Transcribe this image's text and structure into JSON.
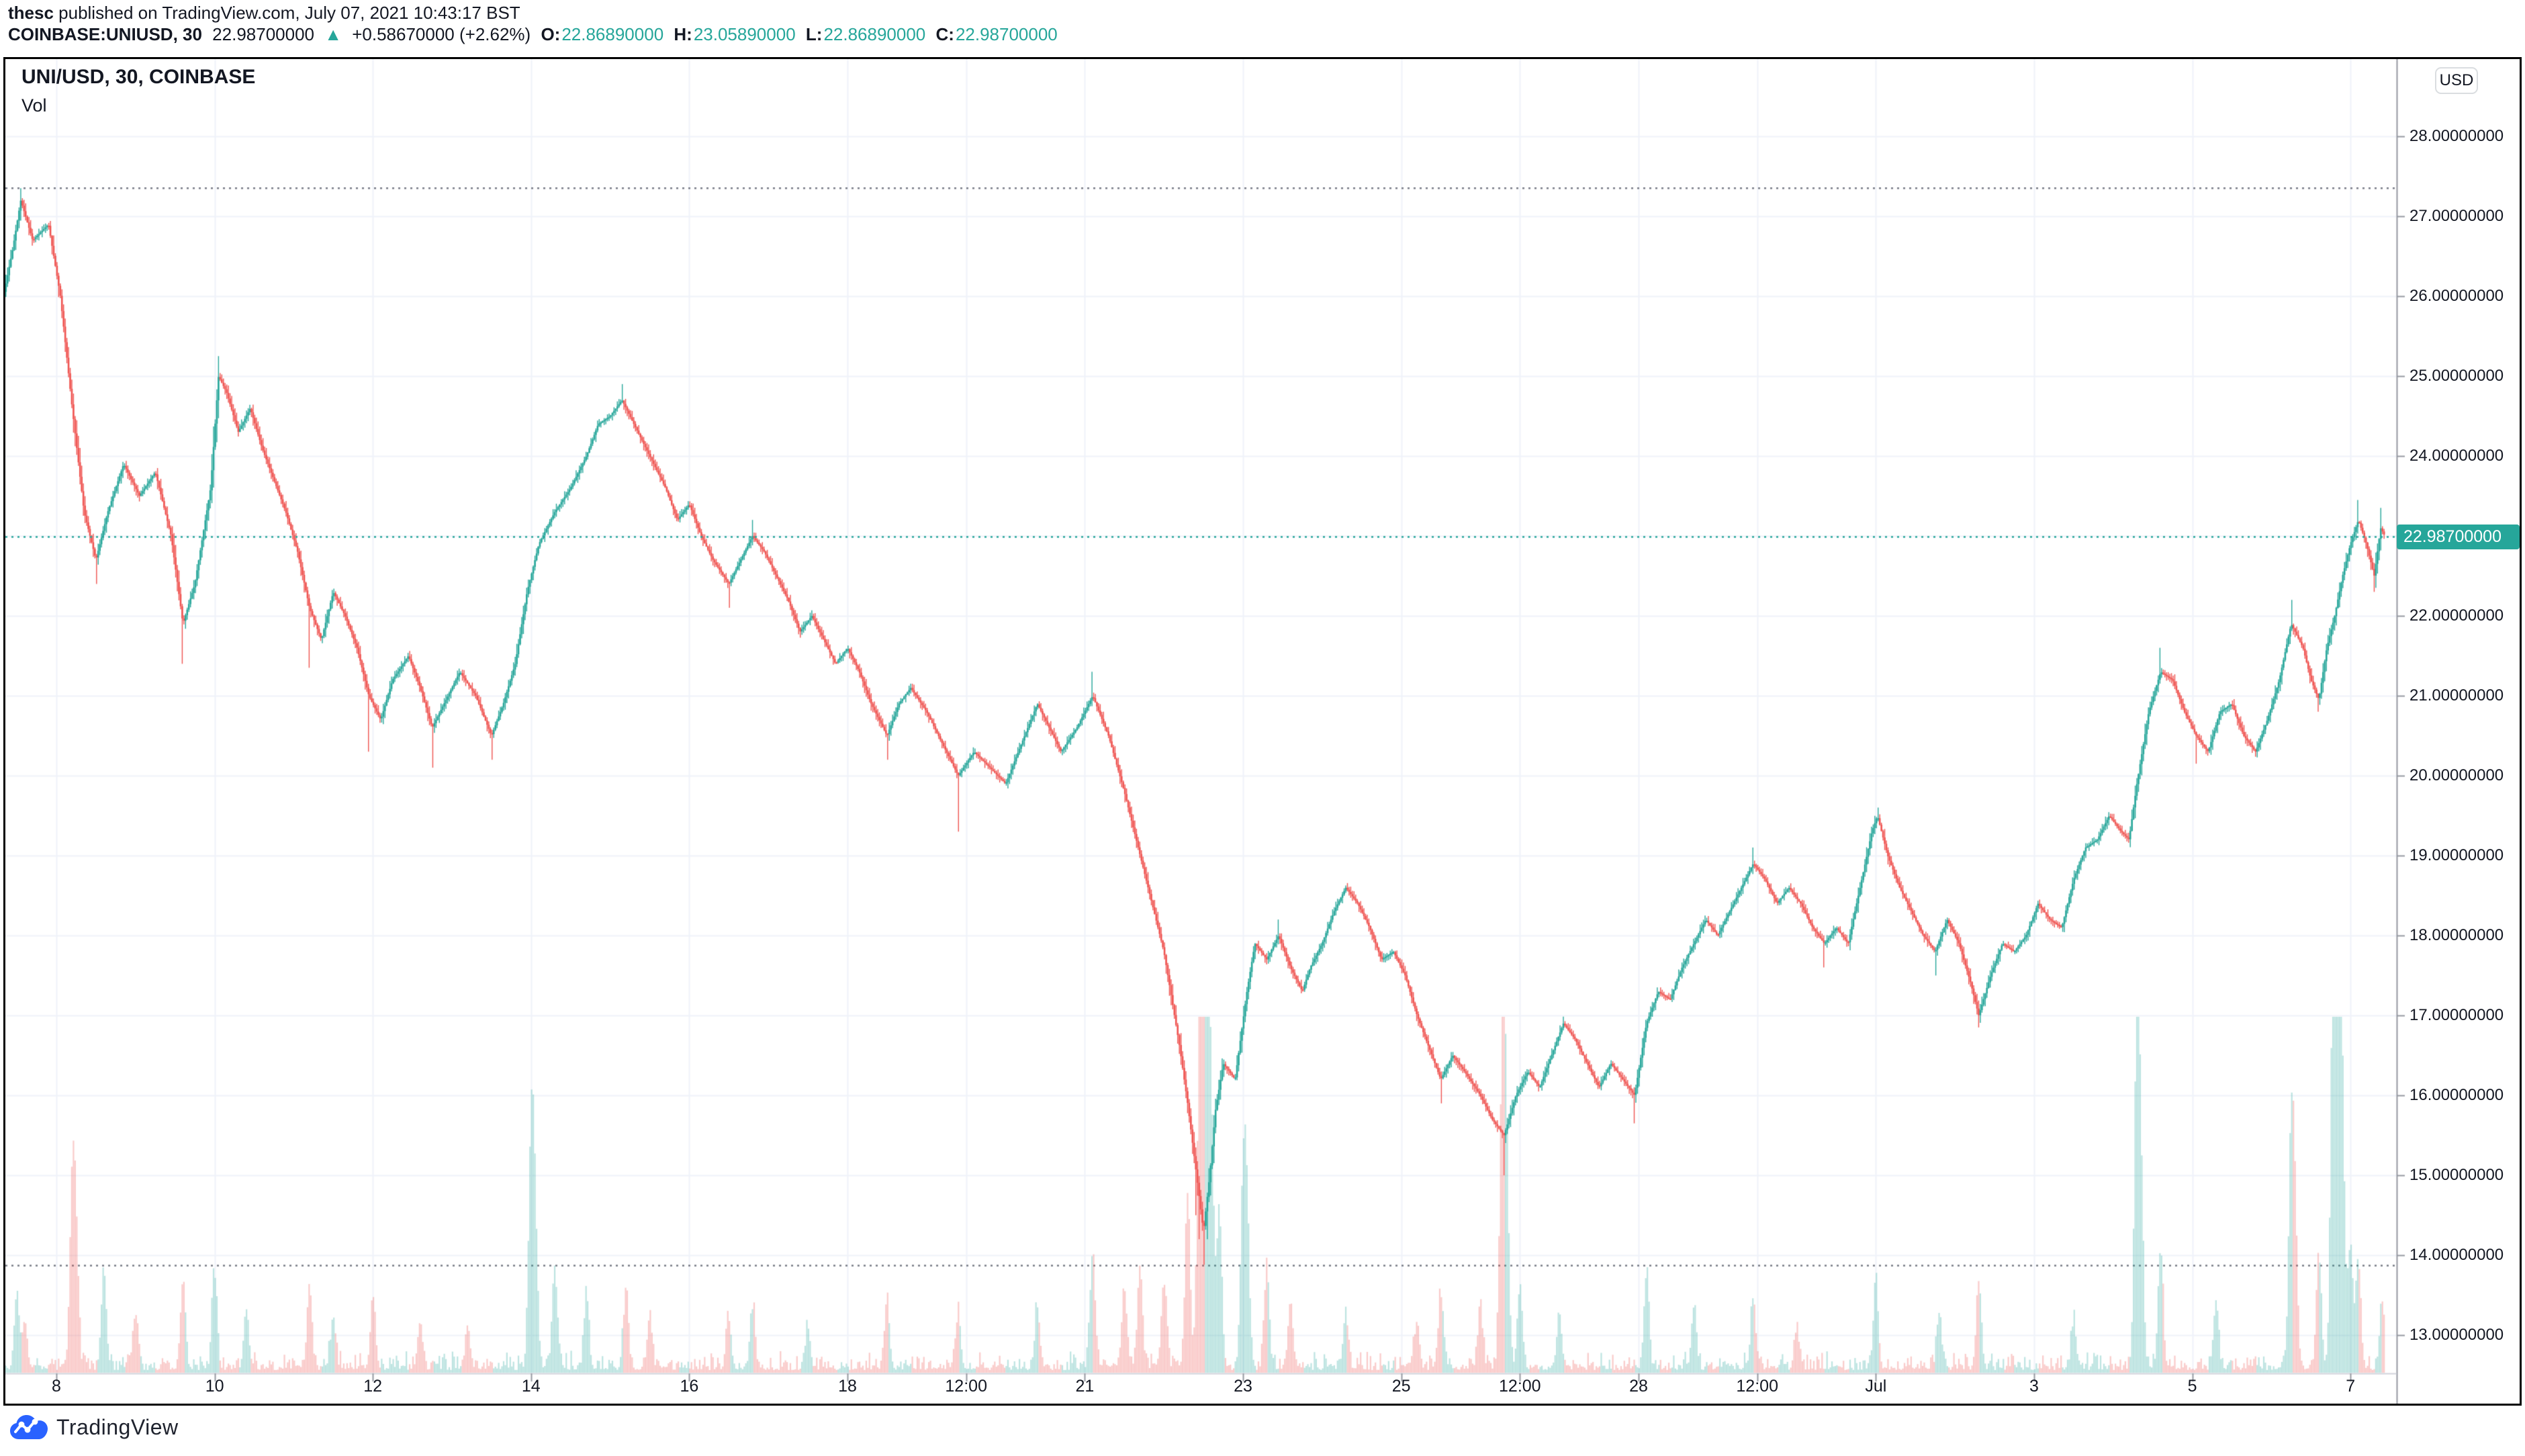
{
  "header": {
    "byline": {
      "user": "thesc",
      "rest": " published on TradingView.com, July 07, 2021 10:43:17 BST"
    },
    "quote": {
      "symbol": "COINBASE:UNIUSD, 30",
      "last": "22.98700000",
      "arrow": "▲",
      "change": "+0.58670000 (+2.62%)",
      "o_label": "O:",
      "o": "22.86890000",
      "h_label": "H:",
      "h": "23.05890000",
      "l_label": "L:",
      "l": "22.86890000",
      "c_label": "C:",
      "c": "22.98700000"
    }
  },
  "legend": {
    "title": "UNI/USD, 30, COINBASE",
    "indicator": "Vol"
  },
  "price_axis": {
    "currency": "USD",
    "current": "22.98700000",
    "ticks": [
      {
        "price": 28,
        "label": "28.00000000"
      },
      {
        "price": 27,
        "label": "27.00000000"
      },
      {
        "price": 26,
        "label": "26.00000000"
      },
      {
        "price": 25,
        "label": "25.00000000"
      },
      {
        "price": 24,
        "label": "24.00000000"
      },
      {
        "price": 23,
        "label": "23.00000000"
      },
      {
        "price": 22,
        "label": "22.00000000"
      },
      {
        "price": 21,
        "label": "21.00000000"
      },
      {
        "price": 20,
        "label": "20.00000000"
      },
      {
        "price": 19,
        "label": "19.00000000"
      },
      {
        "price": 18,
        "label": "18.00000000"
      },
      {
        "price": 17,
        "label": "17.00000000"
      },
      {
        "price": 16,
        "label": "16.00000000"
      },
      {
        "price": 15,
        "label": "15.00000000"
      },
      {
        "price": 14,
        "label": "14.00000000"
      },
      {
        "price": 13,
        "label": "13.00000000"
      }
    ]
  },
  "time_axis": {
    "ticks": [
      {
        "day": 8,
        "label": "8"
      },
      {
        "day": 10,
        "label": "10"
      },
      {
        "day": 12,
        "label": "12"
      },
      {
        "day": 14,
        "label": "14"
      },
      {
        "day": 16,
        "label": "16"
      },
      {
        "day": 18,
        "label": "18"
      },
      {
        "day": 19.5,
        "label": "12:00"
      },
      {
        "day": 21,
        "label": "21"
      },
      {
        "day": 23,
        "label": "23"
      },
      {
        "day": 25,
        "label": "25"
      },
      {
        "day": 26.5,
        "label": "12:00"
      },
      {
        "day": 28,
        "label": "28"
      },
      {
        "day": 29.5,
        "label": "12:00"
      },
      {
        "day": 31,
        "label": "Jul"
      },
      {
        "day": 33,
        "label": "3"
      },
      {
        "day": 35,
        "label": "5"
      },
      {
        "day": 37,
        "label": "7"
      }
    ]
  },
  "footer": {
    "brand": "TradingView"
  },
  "colors": {
    "up": "#26a69a",
    "down": "#ef5350",
    "vol_up": "rgba(38,166,154,0.30)",
    "vol_down": "rgba(239,83,80,0.30)",
    "grid": "#f0f3fa",
    "axis_line": "#9598a1",
    "sep_line": "#d1d4dc",
    "text": "#131722",
    "dotted_gray": "#787b86",
    "accent_teal": "#26a69a",
    "price_label_bg": "#26a69a",
    "brand_blue": "#2962ff"
  },
  "chart_data": {
    "type": "candlestick",
    "symbol": "UNI/USD",
    "exchange": "COINBASE",
    "interval_minutes": 30,
    "title": "UNI/USD, 30, COINBASE",
    "x_unit": "June 2021 day number (31 = Jul 1, 37 = Jul 7)",
    "visible_x_range": [
      7.3,
      37.6
    ],
    "visible_y_range": [
      12.5,
      29.0
    ],
    "y_ticks": [
      13,
      14,
      15,
      16,
      17,
      18,
      19,
      20,
      21,
      22,
      23,
      24,
      25,
      26,
      27,
      28
    ],
    "range_high_line": 27.35,
    "range_low_line": 13.87,
    "current_price": 22.987,
    "current_price_is_up": true,
    "grid": true,
    "legend_position": "top-left",
    "price_path": [
      [
        7.33,
        26.0
      ],
      [
        7.45,
        26.6
      ],
      [
        7.55,
        27.2
      ],
      [
        7.7,
        26.7
      ],
      [
        7.9,
        26.9
      ],
      [
        8.05,
        26.0
      ],
      [
        8.2,
        24.6
      ],
      [
        8.35,
        23.3
      ],
      [
        8.5,
        22.7
      ],
      [
        8.65,
        23.3
      ],
      [
        8.85,
        23.9
      ],
      [
        9.05,
        23.5
      ],
      [
        9.25,
        23.8
      ],
      [
        9.45,
        23.0
      ],
      [
        9.6,
        21.9
      ],
      [
        9.75,
        22.4
      ],
      [
        9.95,
        23.6
      ],
      [
        10.05,
        25.0
      ],
      [
        10.15,
        24.8
      ],
      [
        10.3,
        24.3
      ],
      [
        10.45,
        24.6
      ],
      [
        10.6,
        24.1
      ],
      [
        10.75,
        23.7
      ],
      [
        10.9,
        23.3
      ],
      [
        11.05,
        22.8
      ],
      [
        11.2,
        22.1
      ],
      [
        11.35,
        21.7
      ],
      [
        11.5,
        22.3
      ],
      [
        11.65,
        22.0
      ],
      [
        11.8,
        21.6
      ],
      [
        11.95,
        21.0
      ],
      [
        12.1,
        20.7
      ],
      [
        12.25,
        21.2
      ],
      [
        12.45,
        21.5
      ],
      [
        12.6,
        21.1
      ],
      [
        12.75,
        20.6
      ],
      [
        12.9,
        20.9
      ],
      [
        13.1,
        21.3
      ],
      [
        13.3,
        21.0
      ],
      [
        13.5,
        20.5
      ],
      [
        13.65,
        20.9
      ],
      [
        13.8,
        21.4
      ],
      [
        13.95,
        22.3
      ],
      [
        14.1,
        22.9
      ],
      [
        14.3,
        23.3
      ],
      [
        14.5,
        23.6
      ],
      [
        14.7,
        24.0
      ],
      [
        14.85,
        24.4
      ],
      [
        15.0,
        24.5
      ],
      [
        15.15,
        24.7
      ],
      [
        15.3,
        24.4
      ],
      [
        15.5,
        24.0
      ],
      [
        15.7,
        23.6
      ],
      [
        15.85,
        23.2
      ],
      [
        16.0,
        23.4
      ],
      [
        16.15,
        23.0
      ],
      [
        16.3,
        22.7
      ],
      [
        16.5,
        22.4
      ],
      [
        16.65,
        22.7
      ],
      [
        16.8,
        23.0
      ],
      [
        16.95,
        22.8
      ],
      [
        17.1,
        22.5
      ],
      [
        17.25,
        22.2
      ],
      [
        17.4,
        21.8
      ],
      [
        17.55,
        22.0
      ],
      [
        17.7,
        21.7
      ],
      [
        17.85,
        21.4
      ],
      [
        18.0,
        21.6
      ],
      [
        18.15,
        21.3
      ],
      [
        18.3,
        20.9
      ],
      [
        18.5,
        20.5
      ],
      [
        18.65,
        20.9
      ],
      [
        18.8,
        21.1
      ],
      [
        19.0,
        20.8
      ],
      [
        19.2,
        20.4
      ],
      [
        19.4,
        20.0
      ],
      [
        19.6,
        20.3
      ],
      [
        19.8,
        20.1
      ],
      [
        20.0,
        19.9
      ],
      [
        20.2,
        20.4
      ],
      [
        20.4,
        20.9
      ],
      [
        20.55,
        20.6
      ],
      [
        20.7,
        20.3
      ],
      [
        20.9,
        20.6
      ],
      [
        21.1,
        21.0
      ],
      [
        21.3,
        20.5
      ],
      [
        21.5,
        19.8
      ],
      [
        21.7,
        19.0
      ],
      [
        21.85,
        18.4
      ],
      [
        22.0,
        17.8
      ],
      [
        22.1,
        17.2
      ],
      [
        22.2,
        16.6
      ],
      [
        22.3,
        15.9
      ],
      [
        22.4,
        15.1
      ],
      [
        22.5,
        14.3
      ],
      [
        22.58,
        15.0
      ],
      [
        22.65,
        15.8
      ],
      [
        22.75,
        16.4
      ],
      [
        22.9,
        16.2
      ],
      [
        23.05,
        17.3
      ],
      [
        23.15,
        17.9
      ],
      [
        23.3,
        17.7
      ],
      [
        23.45,
        18.0
      ],
      [
        23.6,
        17.6
      ],
      [
        23.75,
        17.3
      ],
      [
        23.85,
        17.6
      ],
      [
        24.0,
        17.9
      ],
      [
        24.15,
        18.3
      ],
      [
        24.3,
        18.6
      ],
      [
        24.45,
        18.4
      ],
      [
        24.6,
        18.1
      ],
      [
        24.75,
        17.7
      ],
      [
        24.9,
        17.8
      ],
      [
        25.05,
        17.5
      ],
      [
        25.2,
        17.0
      ],
      [
        25.35,
        16.6
      ],
      [
        25.5,
        16.2
      ],
      [
        25.65,
        16.5
      ],
      [
        25.8,
        16.3
      ],
      [
        26.0,
        16.0
      ],
      [
        26.15,
        15.7
      ],
      [
        26.3,
        15.5
      ],
      [
        26.45,
        16.0
      ],
      [
        26.6,
        16.3
      ],
      [
        26.75,
        16.1
      ],
      [
        26.9,
        16.5
      ],
      [
        27.05,
        16.9
      ],
      [
        27.2,
        16.7
      ],
      [
        27.35,
        16.4
      ],
      [
        27.5,
        16.1
      ],
      [
        27.65,
        16.4
      ],
      [
        27.8,
        16.2
      ],
      [
        27.95,
        16.0
      ],
      [
        28.1,
        16.9
      ],
      [
        28.25,
        17.3
      ],
      [
        28.4,
        17.2
      ],
      [
        28.55,
        17.6
      ],
      [
        28.7,
        17.9
      ],
      [
        28.85,
        18.2
      ],
      [
        29.0,
        18.0
      ],
      [
        29.15,
        18.3
      ],
      [
        29.3,
        18.6
      ],
      [
        29.45,
        18.9
      ],
      [
        29.6,
        18.7
      ],
      [
        29.75,
        18.4
      ],
      [
        29.9,
        18.6
      ],
      [
        30.05,
        18.4
      ],
      [
        30.2,
        18.1
      ],
      [
        30.35,
        17.9
      ],
      [
        30.5,
        18.1
      ],
      [
        30.65,
        17.9
      ],
      [
        30.8,
        18.6
      ],
      [
        30.95,
        19.3
      ],
      [
        31.02,
        19.5
      ],
      [
        31.15,
        19.0
      ],
      [
        31.3,
        18.6
      ],
      [
        31.45,
        18.3
      ],
      [
        31.6,
        18.0
      ],
      [
        31.75,
        17.8
      ],
      [
        31.9,
        18.2
      ],
      [
        32.05,
        17.9
      ],
      [
        32.2,
        17.4
      ],
      [
        32.3,
        17.0
      ],
      [
        32.45,
        17.5
      ],
      [
        32.6,
        17.9
      ],
      [
        32.75,
        17.8
      ],
      [
        32.9,
        18.0
      ],
      [
        33.05,
        18.4
      ],
      [
        33.2,
        18.2
      ],
      [
        33.35,
        18.1
      ],
      [
        33.5,
        18.7
      ],
      [
        33.65,
        19.1
      ],
      [
        33.8,
        19.2
      ],
      [
        33.95,
        19.5
      ],
      [
        34.1,
        19.3
      ],
      [
        34.2,
        19.2
      ],
      [
        34.3,
        19.9
      ],
      [
        34.45,
        20.8
      ],
      [
        34.6,
        21.3
      ],
      [
        34.75,
        21.2
      ],
      [
        34.9,
        20.8
      ],
      [
        35.05,
        20.5
      ],
      [
        35.2,
        20.3
      ],
      [
        35.35,
        20.8
      ],
      [
        35.5,
        20.9
      ],
      [
        35.65,
        20.5
      ],
      [
        35.8,
        20.3
      ],
      [
        35.95,
        20.7
      ],
      [
        36.1,
        21.2
      ],
      [
        36.25,
        21.9
      ],
      [
        36.4,
        21.6
      ],
      [
        36.5,
        21.2
      ],
      [
        36.6,
        20.95
      ],
      [
        36.7,
        21.6
      ],
      [
        36.8,
        22.0
      ],
      [
        36.9,
        22.5
      ],
      [
        37.0,
        22.9
      ],
      [
        37.1,
        23.2
      ],
      [
        37.2,
        22.9
      ],
      [
        37.3,
        22.5
      ],
      [
        37.38,
        23.1
      ],
      [
        37.44,
        22.987
      ]
    ],
    "wick_highs": [
      [
        7.55,
        27.35
      ],
      [
        10.05,
        25.25
      ],
      [
        15.15,
        24.9
      ],
      [
        16.8,
        23.2
      ],
      [
        21.1,
        21.3
      ],
      [
        23.45,
        18.2
      ],
      [
        29.45,
        19.1
      ],
      [
        31.02,
        19.6
      ],
      [
        34.6,
        21.6
      ],
      [
        36.25,
        22.2
      ],
      [
        37.1,
        23.45
      ],
      [
        37.38,
        23.35
      ]
    ],
    "wick_lows": [
      [
        8.5,
        22.4
      ],
      [
        9.6,
        21.4
      ],
      [
        11.2,
        21.35
      ],
      [
        11.95,
        20.3
      ],
      [
        12.75,
        20.1
      ],
      [
        13.5,
        20.2
      ],
      [
        16.5,
        22.1
      ],
      [
        18.5,
        20.2
      ],
      [
        19.4,
        19.3
      ],
      [
        22.4,
        14.5
      ],
      [
        22.45,
        14.2
      ],
      [
        22.5,
        13.88
      ],
      [
        22.55,
        14.2
      ],
      [
        25.5,
        15.9
      ],
      [
        26.3,
        15.0
      ],
      [
        27.95,
        15.65
      ],
      [
        30.35,
        17.6
      ],
      [
        31.75,
        17.5
      ],
      [
        32.3,
        16.85
      ],
      [
        35.05,
        20.15
      ],
      [
        36.6,
        20.8
      ],
      [
        37.3,
        22.3
      ]
    ],
    "volume_spikes": [
      [
        7.5,
        110
      ],
      [
        7.6,
        70
      ],
      [
        8.2,
        260
      ],
      [
        8.25,
        180
      ],
      [
        8.6,
        150
      ],
      [
        9.0,
        80
      ],
      [
        9.6,
        130
      ],
      [
        10.0,
        140
      ],
      [
        10.4,
        90
      ],
      [
        11.2,
        120
      ],
      [
        11.5,
        80
      ],
      [
        12.0,
        100
      ],
      [
        12.6,
        70
      ],
      [
        13.2,
        60
      ],
      [
        14.0,
        330
      ],
      [
        14.05,
        220
      ],
      [
        14.3,
        150
      ],
      [
        14.7,
        100
      ],
      [
        15.2,
        110
      ],
      [
        15.5,
        80
      ],
      [
        16.5,
        70
      ],
      [
        16.8,
        90
      ],
      [
        17.5,
        60
      ],
      [
        18.5,
        100
      ],
      [
        19.4,
        80
      ],
      [
        20.4,
        90
      ],
      [
        21.1,
        170
      ],
      [
        21.5,
        120
      ],
      [
        21.7,
        150
      ],
      [
        22.0,
        130
      ],
      [
        22.3,
        260
      ],
      [
        22.45,
        420
      ],
      [
        22.5,
        480
      ],
      [
        22.55,
        400
      ],
      [
        22.6,
        330
      ],
      [
        22.7,
        240
      ],
      [
        23.0,
        260
      ],
      [
        23.05,
        220
      ],
      [
        23.3,
        150
      ],
      [
        23.6,
        100
      ],
      [
        24.3,
        80
      ],
      [
        25.2,
        70
      ],
      [
        25.5,
        110
      ],
      [
        26.0,
        90
      ],
      [
        26.28,
        470
      ],
      [
        26.33,
        300
      ],
      [
        26.5,
        120
      ],
      [
        27.0,
        80
      ],
      [
        28.1,
        140
      ],
      [
        28.7,
        90
      ],
      [
        29.45,
        100
      ],
      [
        30.0,
        60
      ],
      [
        31.0,
        130
      ],
      [
        31.8,
        80
      ],
      [
        32.3,
        120
      ],
      [
        33.5,
        70
      ],
      [
        34.3,
        500
      ],
      [
        34.35,
        260
      ],
      [
        34.6,
        180
      ],
      [
        35.3,
        100
      ],
      [
        36.25,
        340
      ],
      [
        36.3,
        200
      ],
      [
        36.6,
        170
      ],
      [
        36.78,
        520
      ],
      [
        36.82,
        450
      ],
      [
        36.86,
        370
      ],
      [
        36.9,
        290
      ],
      [
        37.0,
        180
      ],
      [
        37.1,
        160
      ],
      [
        37.4,
        100
      ]
    ]
  }
}
